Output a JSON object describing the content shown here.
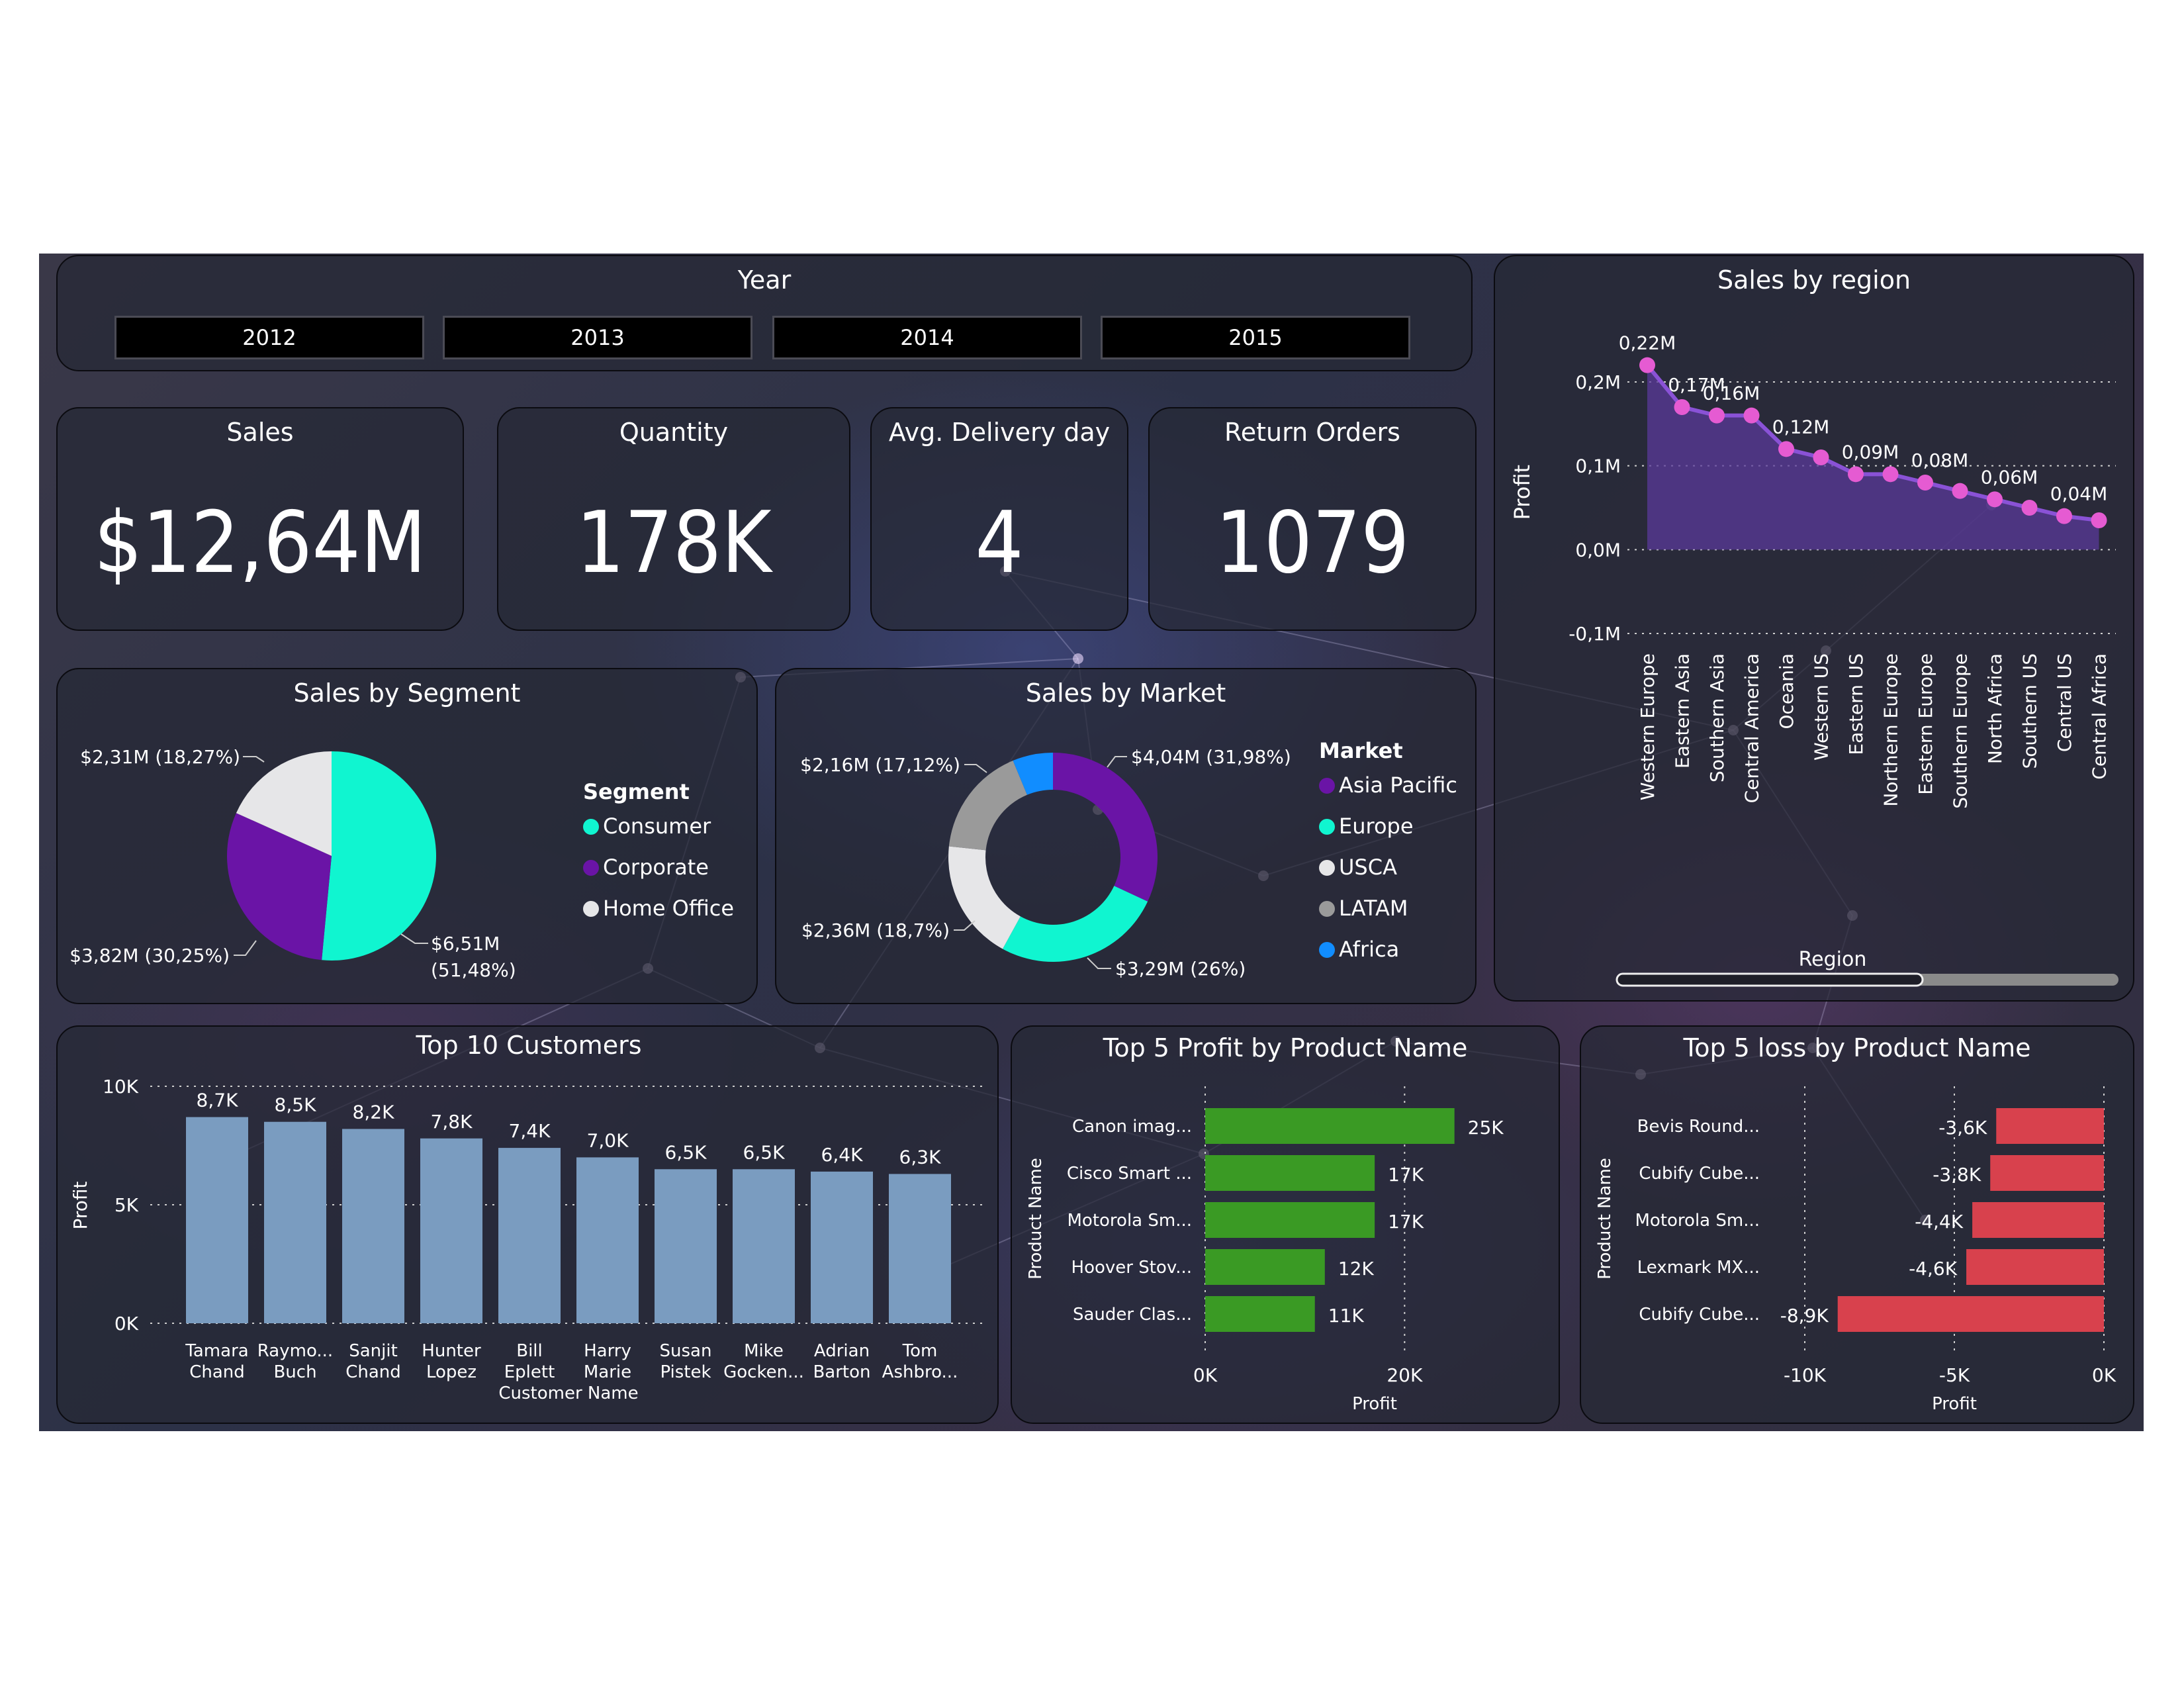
{
  "year_slicer": {
    "title": "Year",
    "years": [
      "2012",
      "2013",
      "2014",
      "2015"
    ]
  },
  "kpis": {
    "sales": {
      "label": "Sales",
      "value": "$12,64M"
    },
    "quantity": {
      "label": "Quantity",
      "value": "178K"
    },
    "delivery": {
      "label": "Avg. Delivery day",
      "value": "4"
    },
    "returns": {
      "label": "Return Orders",
      "value": "1079"
    }
  },
  "colors": {
    "teal": "#10f5d0",
    "purple": "#6a14a6",
    "white": "#e6e6e8",
    "grey": "#9a9a9a",
    "blue": "#118dff",
    "bar": "#7a9cc0",
    "green": "#3a9a24",
    "red": "#d8414d",
    "pink": "#e55bd2",
    "area": "#5a3a9a"
  },
  "chart_data": [
    {
      "type": "pie",
      "id": "segment",
      "title": "Sales by Segment",
      "legend_title": "Segment",
      "categories": [
        "Consumer",
        "Corporate",
        "Home Office"
      ],
      "values": [
        6.51,
        3.82,
        2.31
      ],
      "percent": [
        51.48,
        30.25,
        18.27
      ],
      "labels": [
        "$6,51M (51,48%)",
        "$3,82M (30,25%)",
        "$2,31M (18,27%)"
      ],
      "label_lines": [
        [
          "$6,51M",
          "(51,48%)"
        ],
        [
          "$3,82M (30,25%)"
        ],
        [
          "$2,31M (18,27%)"
        ]
      ],
      "legend_placement": "right"
    },
    {
      "type": "pie",
      "id": "market",
      "donut": true,
      "title": "Sales by Market",
      "legend_title": "Market",
      "categories": [
        "Asia Pacific",
        "Europe",
        "USCA",
        "LATAM",
        "Africa"
      ],
      "values": [
        4.04,
        3.29,
        2.36,
        2.16,
        0.79
      ],
      "percent": [
        31.98,
        26,
        18.7,
        17.12,
        6.2
      ],
      "labels": [
        "$4,04M (31,98%)",
        "$3,29M (26%)",
        "$2,36M (18,7%)",
        "$2,16M (17,12%)",
        ""
      ],
      "legend_placement": "right"
    },
    {
      "type": "area",
      "id": "region",
      "title": "Sales by region",
      "xlabel": "Region",
      "ylabel": "Profit",
      "categories": [
        "Western Europe",
        "Eastern Asia",
        "Southern Asia",
        "Central America",
        "Oceania",
        "Western US",
        "Eastern US",
        "Northern Europe",
        "Eastern Europe",
        "Southern Europe",
        "North Africa",
        "Southern US",
        "Central US",
        "Central Africa"
      ],
      "values": [
        0.22,
        0.17,
        0.16,
        0.16,
        0.12,
        0.11,
        0.09,
        0.09,
        0.08,
        0.07,
        0.06,
        0.05,
        0.04,
        0.035
      ],
      "point_labels": [
        "0,22M",
        "0,17M",
        "0,16M",
        "",
        "0,12M",
        "",
        "0,09M",
        "",
        "0,08M",
        "",
        "0,06M",
        "",
        "0,04M",
        ""
      ],
      "yticks": [
        0.2,
        0.1,
        0.0,
        -0.1
      ],
      "ytick_labels": [
        "0,2M",
        "0,1M",
        "0,0M",
        "-0,1M"
      ],
      "ylim": [
        -0.1,
        0.2
      ],
      "grid": true
    },
    {
      "type": "bar",
      "id": "customers",
      "title": "Top 10 Customers",
      "xlabel": "Customer Name",
      "ylabel": "Profit",
      "categories": [
        [
          "Tamara",
          "Chand"
        ],
        [
          "Raymo...",
          "Buch"
        ],
        [
          "Sanjit",
          "Chand"
        ],
        [
          "Hunter",
          "Lopez"
        ],
        [
          "Bill",
          "Eplett"
        ],
        [
          "Harry",
          "Marie"
        ],
        [
          "Susan",
          "Pistek"
        ],
        [
          "Mike",
          "Gocken..."
        ],
        [
          "Adrian",
          "Barton"
        ],
        [
          "Tom",
          "Ashbro..."
        ]
      ],
      "values": [
        8.7,
        8.5,
        8.2,
        7.8,
        7.4,
        7.0,
        6.5,
        6.5,
        6.4,
        6.3
      ],
      "value_labels": [
        "8,7K",
        "8,5K",
        "8,2K",
        "7,8K",
        "7,4K",
        "7,0K",
        "6,5K",
        "6,5K",
        "6,4K",
        "6,3K"
      ],
      "yticks": [
        0,
        5,
        10
      ],
      "ytick_labels": [
        "0K",
        "5K",
        "10K"
      ],
      "ylim": [
        0,
        10
      ],
      "grid": true
    },
    {
      "type": "bar",
      "orientation": "horizontal",
      "id": "profit",
      "title": "Top 5 Profit by Product Name",
      "xlabel": "Profit",
      "ylabel": "Product Name",
      "categories": [
        "Canon imag...",
        "Cisco Smart ...",
        "Motorola Sm...",
        "Hoover Stov...",
        "Sauder Clas..."
      ],
      "values": [
        25,
        17,
        17,
        12,
        11
      ],
      "value_labels": [
        "25K",
        "17K",
        "17K",
        "12K",
        "11K"
      ],
      "xticks": [
        0,
        20
      ],
      "xtick_labels": [
        "0K",
        "20K"
      ],
      "xlim": [
        0,
        30
      ],
      "grid": true
    },
    {
      "type": "bar",
      "orientation": "horizontal",
      "id": "loss",
      "title": "Top 5 loss by Product Name",
      "xlabel": "Profit",
      "ylabel": "Product Name",
      "categories": [
        "Bevis Round...",
        "Cubify Cube...",
        "Motorola Sm...",
        "Lexmark MX...",
        "Cubify Cube..."
      ],
      "values": [
        -3.6,
        -3.8,
        -4.4,
        -4.6,
        -8.9
      ],
      "value_labels": [
        "-3,6K",
        "-3,8K",
        "-4,4K",
        "-4,6K",
        "-8,9K"
      ],
      "xticks": [
        -10,
        -5,
        0
      ],
      "xtick_labels": [
        "-10K",
        "-5K",
        "0K"
      ],
      "xlim": [
        -10,
        0
      ],
      "grid": true
    }
  ]
}
